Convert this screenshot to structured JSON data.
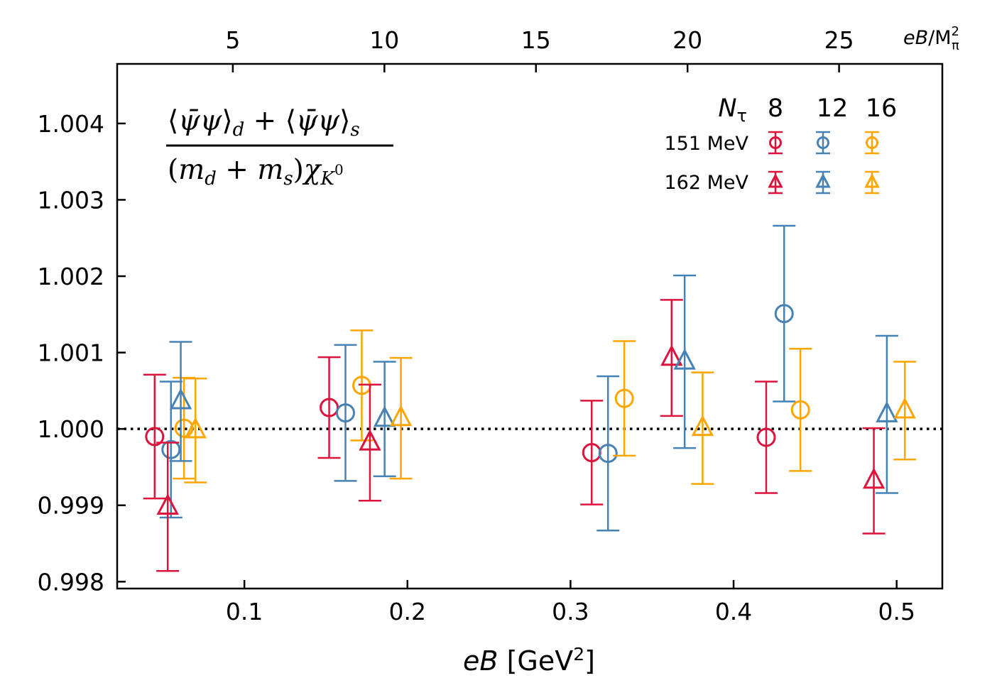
{
  "chart_data": {
    "type": "scatter",
    "title_formula": {
      "numerator": "⟨ψ̄ψ⟩d + ⟨ψ̄ψ⟩s",
      "denominator": "(md + ms)χK⁰"
    },
    "xlabel": "eB [GeV²]",
    "xlabel_top": "eB/M²π",
    "xlim": [
      0.022,
      0.528
    ],
    "ylim": [
      0.99791,
      1.00478
    ],
    "xticks": [
      0.1,
      0.2,
      0.3,
      0.4,
      0.5
    ],
    "xtick_labels": [
      "0.1",
      "0.2",
      "0.3",
      "0.4",
      "0.5"
    ],
    "yticks": [
      0.998,
      0.999,
      1.0,
      1.001,
      1.002,
      1.003,
      1.004
    ],
    "ytick_labels": [
      "0.998",
      "0.999",
      "1.000",
      "1.001",
      "1.002",
      "1.003",
      "1.004"
    ],
    "top_axis_factor": 53.8,
    "top_ticks": [
      5,
      10,
      15,
      20,
      25
    ],
    "top_tick_labels": [
      "5",
      "10",
      "15",
      "20",
      "25"
    ],
    "reference_line": 1.0,
    "legend": {
      "header_label": "Nτ",
      "columns": [
        "8",
        "12",
        "16"
      ],
      "rows": [
        "151 MeV",
        "162 MeV"
      ],
      "placement": "top-right"
    },
    "colors": {
      "8": "#dc143c",
      "12": "#4682b4",
      "16": "#ffa500"
    },
    "series": [
      {
        "name": "151 MeV, Nτ=8",
        "temperature": "151 MeV",
        "ntau": "8",
        "marker": "circle",
        "points": [
          {
            "x": 0.045,
            "y": 0.9999,
            "err": 0.00081
          },
          {
            "x": 0.152,
            "y": 1.00028,
            "err": 0.00066
          },
          {
            "x": 0.313,
            "y": 0.99969,
            "err": 0.00068
          },
          {
            "x": 0.42,
            "y": 0.99989,
            "err": 0.00073
          }
        ]
      },
      {
        "name": "151 MeV, Nτ=12",
        "temperature": "151 MeV",
        "ntau": "12",
        "marker": "circle",
        "points": [
          {
            "x": 0.055,
            "y": 0.99973,
            "err": 0.00089
          },
          {
            "x": 0.162,
            "y": 1.00021,
            "err": 0.00089
          },
          {
            "x": 0.323,
            "y": 0.99968,
            "err": 0.00101
          },
          {
            "x": 0.431,
            "y": 1.00151,
            "err": 0.00115
          }
        ]
      },
      {
        "name": "151 MeV, Nτ=16",
        "temperature": "151 MeV",
        "ntau": "16",
        "marker": "circle",
        "points": [
          {
            "x": 0.063,
            "y": 1.00001,
            "err": 0.00066
          },
          {
            "x": 0.172,
            "y": 1.00057,
            "err": 0.00072
          },
          {
            "x": 0.333,
            "y": 1.0004,
            "err": 0.00075
          },
          {
            "x": 0.441,
            "y": 1.00025,
            "err": 0.0008
          }
        ]
      },
      {
        "name": "162 MeV, Nτ=8",
        "temperature": "162 MeV",
        "ntau": "8",
        "marker": "triangle",
        "points": [
          {
            "x": 0.053,
            "y": 0.99898,
            "err": 0.00084
          },
          {
            "x": 0.177,
            "y": 0.99982,
            "err": 0.00076
          },
          {
            "x": 0.362,
            "y": 1.00093,
            "err": 0.00076
          },
          {
            "x": 0.486,
            "y": 0.99932,
            "err": 0.00069
          }
        ]
      },
      {
        "name": "162 MeV, Nτ=12",
        "temperature": "162 MeV",
        "ntau": "12",
        "marker": "triangle",
        "points": [
          {
            "x": 0.061,
            "y": 1.00036,
            "err": 0.00078
          },
          {
            "x": 0.186,
            "y": 1.00013,
            "err": 0.00075
          },
          {
            "x": 0.37,
            "y": 1.00088,
            "err": 0.00113
          },
          {
            "x": 0.494,
            "y": 1.00019,
            "err": 0.00103
          }
        ]
      },
      {
        "name": "162 MeV, Nτ=16",
        "temperature": "162 MeV",
        "ntau": "16",
        "marker": "triangle",
        "points": [
          {
            "x": 0.07,
            "y": 0.99998,
            "err": 0.00068
          },
          {
            "x": 0.196,
            "y": 1.00014,
            "err": 0.00079
          },
          {
            "x": 0.381,
            "y": 1.00001,
            "err": 0.00073
          },
          {
            "x": 0.505,
            "y": 1.00024,
            "err": 0.00064
          }
        ]
      }
    ]
  }
}
